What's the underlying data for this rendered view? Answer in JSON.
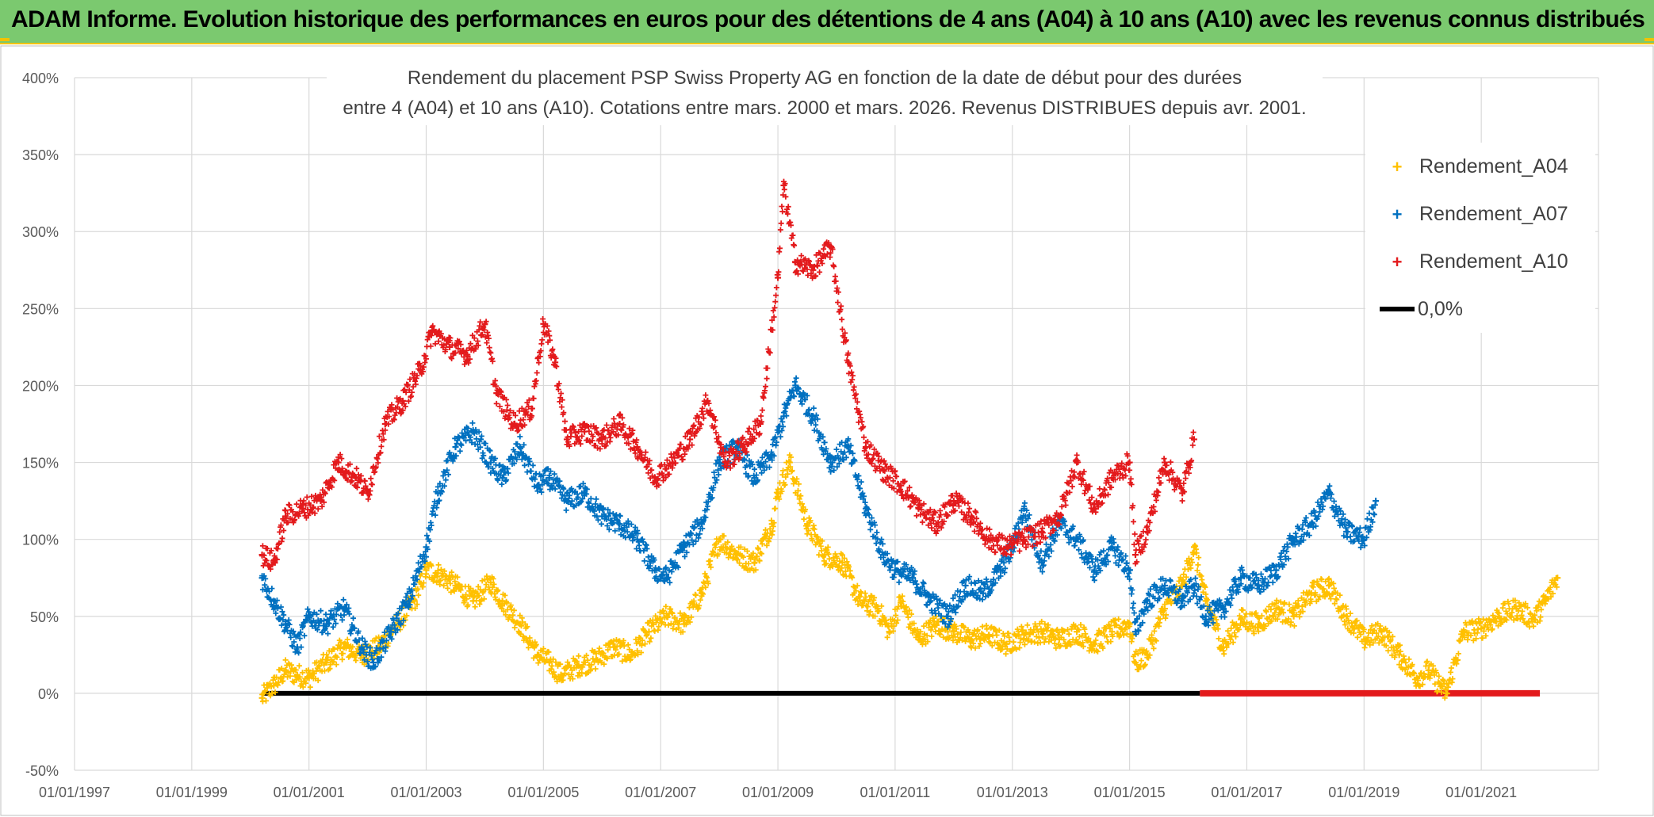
{
  "banner": {
    "title": "ADAM Informe. Evolution historique des performances en euros pour des détentions de 4 ans (A04) à 10 ans (A10) avec les revenus connus distribués"
  },
  "chart_data": {
    "type": "scatter",
    "title_line1": "Rendement du placement PSP Swiss Property AG en fonction de la date de début pour des durées",
    "title_line2": "entre 4 (A04) et 10 ans (A10). Cotations entre mars. 2000 et mars. 2026. Revenus DISTRIBUES depuis avr. 2001.",
    "xlabel": "",
    "ylabel": "",
    "x_range": [
      1997.0,
      2022.0
    ],
    "ylim": [
      -50,
      400
    ],
    "y_ticks": [
      -50,
      0,
      50,
      100,
      150,
      200,
      250,
      300,
      350,
      400
    ],
    "y_tick_labels": [
      "-50%",
      "0%",
      "50%",
      "100%",
      "150%",
      "200%",
      "250%",
      "300%",
      "350%",
      "400%"
    ],
    "x_ticks": [
      1997,
      1999,
      2001,
      2003,
      2005,
      2007,
      2009,
      2011,
      2013,
      2015,
      2017,
      2019,
      2021
    ],
    "x_tick_labels": [
      "01/01/1997",
      "01/01/1999",
      "01/01/2001",
      "01/01/2003",
      "01/01/2005",
      "01/01/2007",
      "01/01/2009",
      "01/01/2011",
      "01/01/2013",
      "01/01/2015",
      "01/01/2017",
      "01/01/2019",
      "01/01/2021"
    ],
    "legend_position": "top-right",
    "series": [
      {
        "name": "Rendement_A04",
        "color": "#ffc000",
        "marker": "+",
        "x": [
          2000.2,
          2000.4,
          2000.6,
          2000.8,
          2001.0,
          2001.3,
          2001.6,
          2001.9,
          2002.2,
          2002.5,
          2002.8,
          2003.0,
          2003.2,
          2003.5,
          2003.8,
          2004.1,
          2004.3,
          2004.6,
          2004.9,
          2005.1,
          2005.3,
          2005.6,
          2005.9,
          2006.2,
          2006.5,
          2006.8,
          2007.1,
          2007.4,
          2007.7,
          2008.0,
          2008.3,
          2008.6,
          2008.9,
          2009.0,
          2009.2,
          2009.5,
          2009.8,
          2010.1,
          2010.4,
          2010.7,
          2010.9,
          2011.1,
          2011.4,
          2011.7,
          2012.0,
          2012.3,
          2012.6,
          2012.9,
          2013.2,
          2013.5,
          2013.8,
          2014.1,
          2014.4,
          2014.7,
          2015.0,
          2015.1,
          2015.3,
          2015.6,
          2015.9,
          2016.1,
          2016.3,
          2016.6,
          2016.9,
          2017.2,
          2017.5,
          2017.8,
          2018.1,
          2018.4,
          2018.7,
          2019.0,
          2019.3,
          2019.6,
          2019.9,
          2020.1,
          2020.4,
          2020.7,
          2021.0,
          2021.3,
          2021.6,
          2021.9,
          2022.1,
          2022.3
        ],
        "y": [
          -3,
          5,
          15,
          12,
          10,
          20,
          30,
          25,
          30,
          45,
          60,
          80,
          78,
          70,
          60,
          72,
          60,
          45,
          25,
          20,
          12,
          18,
          22,
          30,
          25,
          40,
          50,
          45,
          65,
          100,
          90,
          85,
          110,
          130,
          150,
          110,
          90,
          85,
          60,
          55,
          40,
          60,
          35,
          45,
          40,
          35,
          38,
          32,
          38,
          40,
          35,
          40,
          32,
          40,
          45,
          20,
          25,
          55,
          70,
          95,
          60,
          30,
          48,
          45,
          55,
          50,
          65,
          70,
          50,
          35,
          40,
          25,
          10,
          15,
          0,
          40,
          42,
          50,
          55,
          48,
          60,
          75
        ]
      },
      {
        "name": "Rendement_A07",
        "color": "#0070c0",
        "marker": "+",
        "x": [
          2000.2,
          2000.4,
          2000.6,
          2000.8,
          2001.0,
          2001.3,
          2001.6,
          2001.9,
          2002.1,
          2002.4,
          2002.7,
          2003.0,
          2003.2,
          2003.5,
          2003.8,
          2004.1,
          2004.3,
          2004.6,
          2004.9,
          2005.1,
          2005.4,
          2005.7,
          2006.0,
          2006.3,
          2006.6,
          2006.9,
          2007.1,
          2007.4,
          2007.7,
          2008.0,
          2008.3,
          2008.6,
          2008.9,
          2009.1,
          2009.3,
          2009.6,
          2009.9,
          2010.2,
          2010.5,
          2010.8,
          2011.0,
          2011.3,
          2011.6,
          2011.9,
          2012.2,
          2012.5,
          2012.8,
          2013.0,
          2013.2,
          2013.5,
          2013.8,
          2014.1,
          2014.4,
          2014.7,
          2015.0,
          2015.1,
          2015.3,
          2015.6,
          2015.9,
          2016.1,
          2016.3,
          2016.6,
          2016.9,
          2017.2,
          2017.5,
          2017.8,
          2018.1,
          2018.4,
          2018.7,
          2019.0,
          2019.2
        ],
        "y": [
          75,
          60,
          45,
          30,
          50,
          45,
          55,
          30,
          20,
          40,
          60,
          95,
          130,
          160,
          170,
          150,
          140,
          160,
          135,
          140,
          125,
          130,
          115,
          110,
          100,
          80,
          75,
          95,
          110,
          150,
          160,
          140,
          155,
          180,
          200,
          180,
          150,
          160,
          120,
          90,
          80,
          75,
          60,
          50,
          70,
          65,
          80,
          95,
          120,
          85,
          110,
          100,
          80,
          95,
          80,
          40,
          60,
          70,
          60,
          70,
          50,
          55,
          75,
          70,
          80,
          100,
          110,
          130,
          105,
          100,
          125
        ]
      },
      {
        "name": "Rendement_A10",
        "color": "#e31a1c",
        "marker": "+",
        "x": [
          2000.2,
          2000.4,
          2000.6,
          2000.9,
          2001.2,
          2001.5,
          2001.8,
          2002.0,
          2002.3,
          2002.6,
          2002.9,
          2003.1,
          2003.4,
          2003.7,
          2004.0,
          2004.2,
          2004.5,
          2004.8,
          2005.0,
          2005.2,
          2005.4,
          2005.7,
          2006.0,
          2006.3,
          2006.6,
          2006.9,
          2007.2,
          2007.5,
          2007.8,
          2008.1,
          2008.4,
          2008.7,
          2009.0,
          2009.1,
          2009.3,
          2009.6,
          2009.9,
          2010.2,
          2010.5,
          2010.8,
          2011.1,
          2011.4,
          2011.7,
          2012.0,
          2012.3,
          2012.6,
          2012.9,
          2013.2,
          2013.5,
          2013.8,
          2014.1,
          2014.4,
          2014.7,
          2015.0,
          2015.1,
          2015.3,
          2015.6,
          2015.9,
          2016.1
        ],
        "y": [
          90,
          85,
          115,
          120,
          125,
          150,
          140,
          130,
          175,
          190,
          210,
          235,
          225,
          220,
          240,
          195,
          175,
          185,
          240,
          215,
          165,
          170,
          165,
          175,
          160,
          140,
          150,
          165,
          190,
          150,
          160,
          175,
          270,
          330,
          280,
          275,
          290,
          215,
          160,
          145,
          135,
          120,
          110,
          125,
          115,
          100,
          95,
          100,
          105,
          115,
          150,
          120,
          140,
          150,
          90,
          105,
          150,
          130,
          165
        ]
      }
    ],
    "zero_line": {
      "name": "0,0%",
      "color": "#000000",
      "x_start": 2000.2,
      "x_end": 2016.2,
      "value": 0
    },
    "red_baseline": {
      "color": "#e31a1c",
      "x_start": 2016.2,
      "x_end": 2022.0,
      "value": 0
    }
  }
}
